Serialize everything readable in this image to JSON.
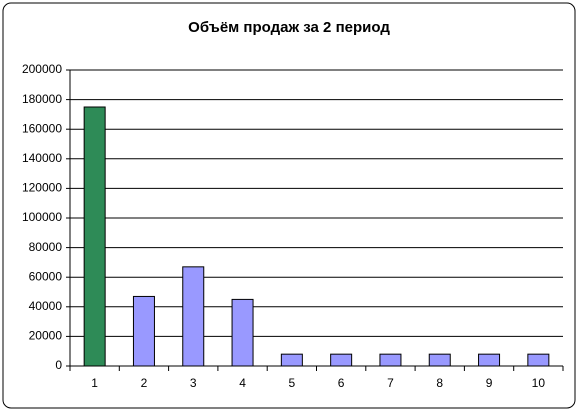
{
  "chart_data": {
    "type": "bar",
    "title": "Объём продаж за 2 период",
    "categories": [
      "1",
      "2",
      "3",
      "4",
      "5",
      "6",
      "7",
      "8",
      "9",
      "10"
    ],
    "values": [
      175000,
      47000,
      67000,
      45000,
      8000,
      8000,
      8000,
      8000,
      8000,
      8000
    ],
    "colors": [
      "#2e8b57",
      "#9999ff",
      "#9999ff",
      "#9999ff",
      "#9999ff",
      "#9999ff",
      "#9999ff",
      "#9999ff",
      "#9999ff",
      "#9999ff"
    ],
    "ylim": [
      0,
      200000
    ],
    "yticks": [
      0,
      20000,
      40000,
      60000,
      80000,
      100000,
      120000,
      140000,
      160000,
      180000,
      200000
    ],
    "grid": true
  }
}
